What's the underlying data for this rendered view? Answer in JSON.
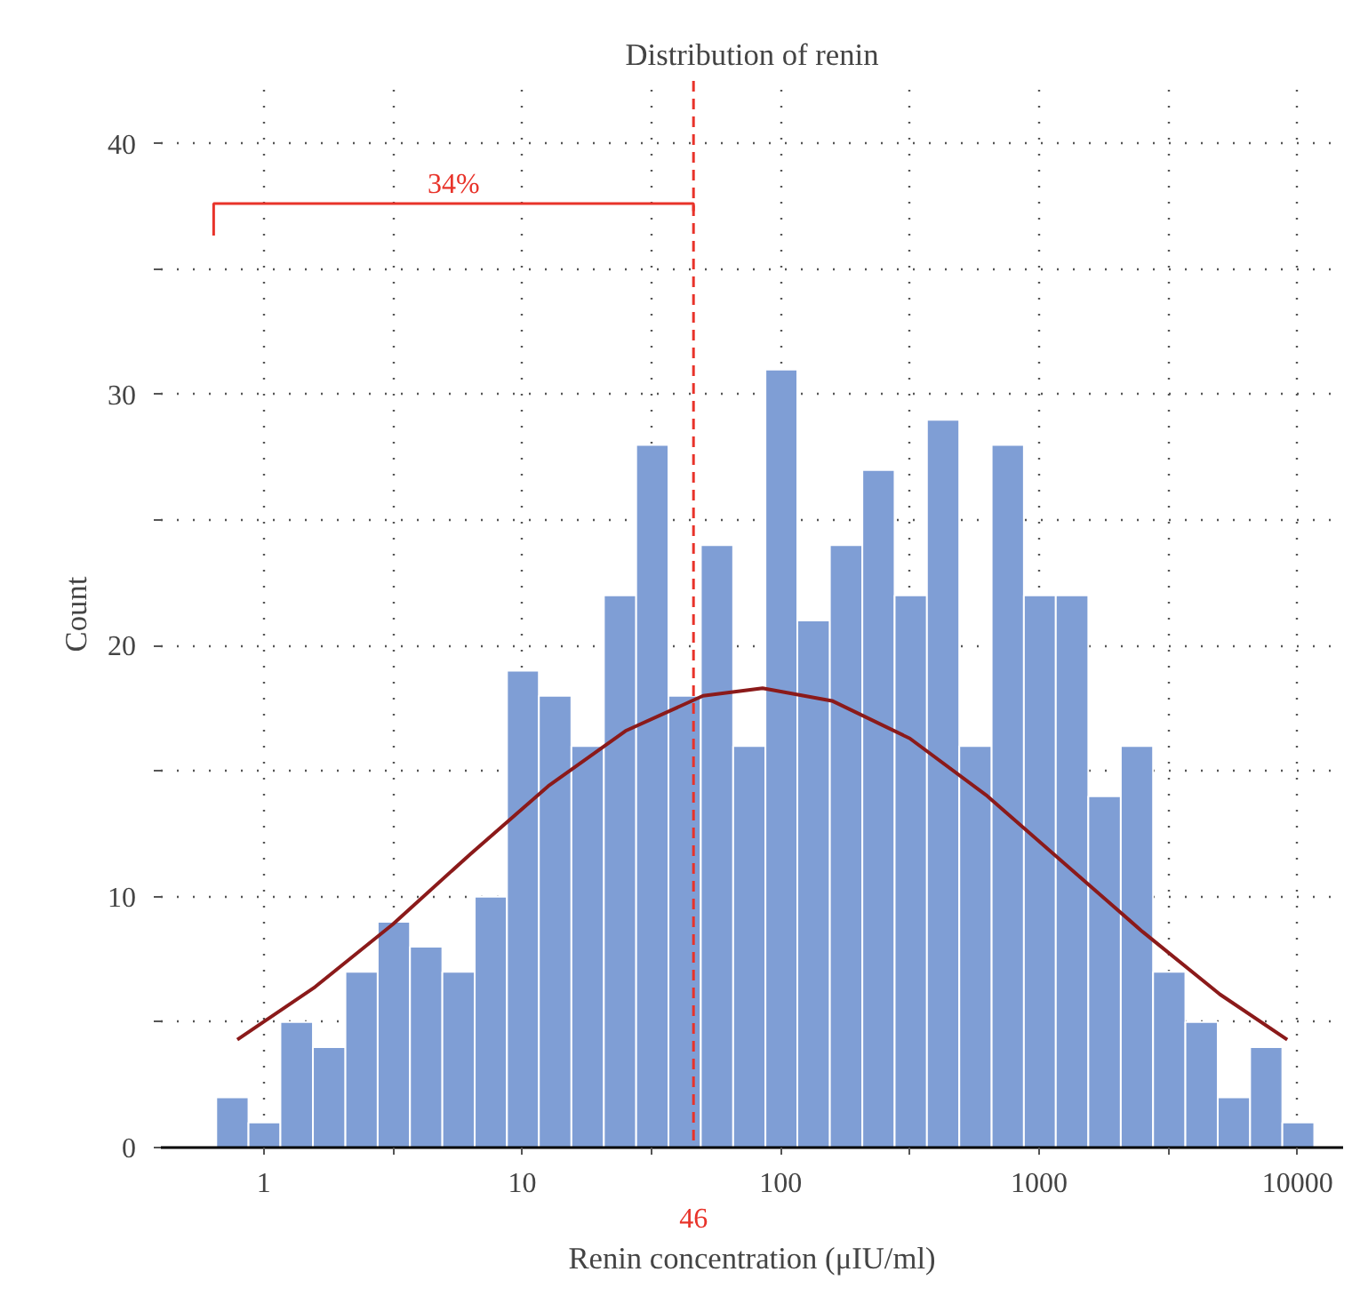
{
  "chart_data": {
    "type": "histogram",
    "title": "Distribution of renin",
    "xlabel": "Renin concentration (μIU/ml)",
    "ylabel": "Count",
    "log": "x",
    "bins": [
      0.655,
      0.873,
      1.16,
      1.55,
      2.07,
      2.76,
      3.68,
      4.91,
      6.55,
      8.73,
      11.6,
      15.5,
      20.7,
      27.6,
      36.8,
      49.1,
      65.5,
      87.3,
      116,
      155,
      207,
      276,
      368,
      491,
      655,
      873,
      1160,
      1550,
      2070,
      2760,
      3680,
      4910,
      6550,
      8730,
      11600
    ],
    "values": [
      2,
      1,
      5,
      4,
      7,
      9,
      8,
      7,
      10,
      19,
      18,
      16,
      22,
      28,
      18,
      24,
      16,
      31,
      21,
      24,
      27,
      22,
      29,
      16,
      28,
      22,
      22,
      14,
      16,
      7,
      5,
      2,
      4,
      1
    ],
    "color": "#7f9ed5",
    "series": [
      {
        "type": "line",
        "color": "#8b1a1a",
        "x": [
          0.79,
          1.58,
          3.16,
          6.31,
          12.6,
          25.1,
          50.1,
          85.1,
          158,
          316,
          631,
          1259,
          2512,
          5012,
          9120
        ],
        "values": [
          4.3,
          6.4,
          8.9,
          11.7,
          14.4,
          16.6,
          18.0,
          18.3,
          17.8,
          16.3,
          14.0,
          11.3,
          8.6,
          6.1,
          4.3
        ]
      }
    ],
    "ref_lines": [
      {
        "axis": "x",
        "value": 46,
        "label": "46",
        "color": "#e8332a",
        "line_style": "dashed"
      }
    ],
    "annotations": [
      "34%"
    ],
    "xlim": [
      0.4,
      15000
    ],
    "ylim": [
      0,
      42.5
    ],
    "xticks": [
      1,
      {
        "value": 3.16,
        "label": null
      },
      10,
      {
        "value": 31.6,
        "label": null
      },
      100,
      {
        "value": 316,
        "label": null
      },
      1000,
      {
        "value": 3160,
        "label": null
      },
      10000
    ],
    "yticks": [
      0,
      {
        "value": 5,
        "label": null
      },
      10,
      {
        "value": 15,
        "label": null
      },
      20,
      {
        "value": 25,
        "label": null
      },
      30,
      {
        "value": 35,
        "label": null
      },
      40
    ],
    "grid": true
  }
}
